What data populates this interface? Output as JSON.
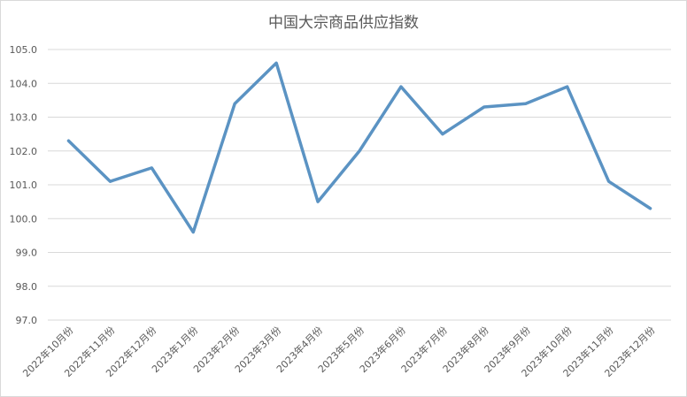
{
  "chart_data": {
    "type": "line",
    "title": "中国大宗商品供应指数",
    "xlabel": "",
    "ylabel": "",
    "categories": [
      "2022年10月份",
      "2022年11月份",
      "2022年12月份",
      "2023年1月份",
      "2023年2月份",
      "2023年3月份",
      "2023年4月份",
      "2023年5月份",
      "2023年6月份",
      "2023年7月份",
      "2023年8月份",
      "2023年9月份",
      "2023年10月份",
      "2023年11月份",
      "2023年12月份"
    ],
    "values": [
      102.3,
      101.1,
      101.5,
      99.6,
      103.4,
      104.6,
      100.5,
      102.0,
      103.9,
      102.5,
      103.3,
      103.4,
      103.9,
      101.1,
      100.3
    ],
    "ylim": [
      97.0,
      105.0
    ],
    "yticks": [
      "97.0",
      "98.0",
      "99.0",
      "100.0",
      "101.0",
      "102.0",
      "103.0",
      "104.0",
      "105.0"
    ],
    "grid": true,
    "legend": "none",
    "line_color": "#5b93c3"
  }
}
